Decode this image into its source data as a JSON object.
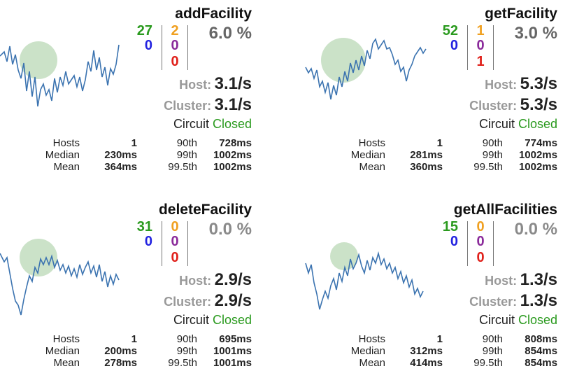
{
  "cards": [
    {
      "name": "addFacility",
      "success": "27",
      "short_circuited": "0",
      "bad_request": "2",
      "timeout": "0",
      "failure": "0",
      "error_rate": "6.0 %",
      "host_label": "Host:",
      "host_rate": "3.1/s",
      "cluster_label": "Cluster:",
      "cluster_rate": "3.1/s",
      "circuit_label": "Circuit",
      "circuit_status": "Closed",
      "stats_labels_left": [
        "Hosts",
        "Median",
        "Mean"
      ],
      "stats_values_left": [
        "1",
        "230ms",
        "364ms"
      ],
      "stats_labels_right": [
        "90th",
        "99th",
        "99.5th"
      ],
      "stats_values_right": [
        "728ms",
        "1002ms",
        "1002ms"
      ]
    },
    {
      "name": "getFacility",
      "success": "52",
      "short_circuited": "0",
      "bad_request": "1",
      "timeout": "0",
      "failure": "1",
      "error_rate": "3.0 %",
      "host_label": "Host:",
      "host_rate": "5.3/s",
      "cluster_label": "Cluster:",
      "cluster_rate": "5.3/s",
      "circuit_label": "Circuit",
      "circuit_status": "Closed",
      "stats_labels_left": [
        "Hosts",
        "Median",
        "Mean"
      ],
      "stats_values_left": [
        "1",
        "281ms",
        "360ms"
      ],
      "stats_labels_right": [
        "90th",
        "99th",
        "99.5th"
      ],
      "stats_values_right": [
        "774ms",
        "1002ms",
        "1002ms"
      ]
    },
    {
      "name": "deleteFacility",
      "success": "31",
      "short_circuited": "0",
      "bad_request": "0",
      "timeout": "0",
      "failure": "0",
      "error_rate": "0.0 %",
      "host_label": "Host:",
      "host_rate": "2.9/s",
      "cluster_label": "Cluster:",
      "cluster_rate": "2.9/s",
      "circuit_label": "Circuit",
      "circuit_status": "Closed",
      "stats_labels_left": [
        "Hosts",
        "Median",
        "Mean"
      ],
      "stats_values_left": [
        "1",
        "200ms",
        "278ms"
      ],
      "stats_labels_right": [
        "90th",
        "99th",
        "99.5th"
      ],
      "stats_values_right": [
        "695ms",
        "1001ms",
        "1001ms"
      ]
    },
    {
      "name": "getAllFacilities",
      "success": "15",
      "short_circuited": "0",
      "bad_request": "0",
      "timeout": "0",
      "failure": "0",
      "error_rate": "0.0 %",
      "host_label": "Host:",
      "host_rate": "1.3/s",
      "cluster_label": "Cluster:",
      "cluster_rate": "1.3/s",
      "circuit_label": "Circuit",
      "circuit_status": "Closed",
      "stats_labels_left": [
        "Hosts",
        "Median",
        "Mean"
      ],
      "stats_values_left": [
        "1",
        "312ms",
        "414ms"
      ],
      "stats_labels_right": [
        "90th",
        "99th",
        "99.5th"
      ],
      "stats_values_right": [
        "808ms",
        "854ms",
        "854ms"
      ]
    }
  ],
  "colors": {
    "success": "#2a9a1e",
    "short_circuited": "#2222e0",
    "bad_request": "#f0a020",
    "timeout": "#8a2a9a",
    "failure": "#e0201a",
    "error_rate_zero": "#8a8a8a",
    "spark_line": "#3b73b0",
    "bubble": "#a9cfa3"
  }
}
